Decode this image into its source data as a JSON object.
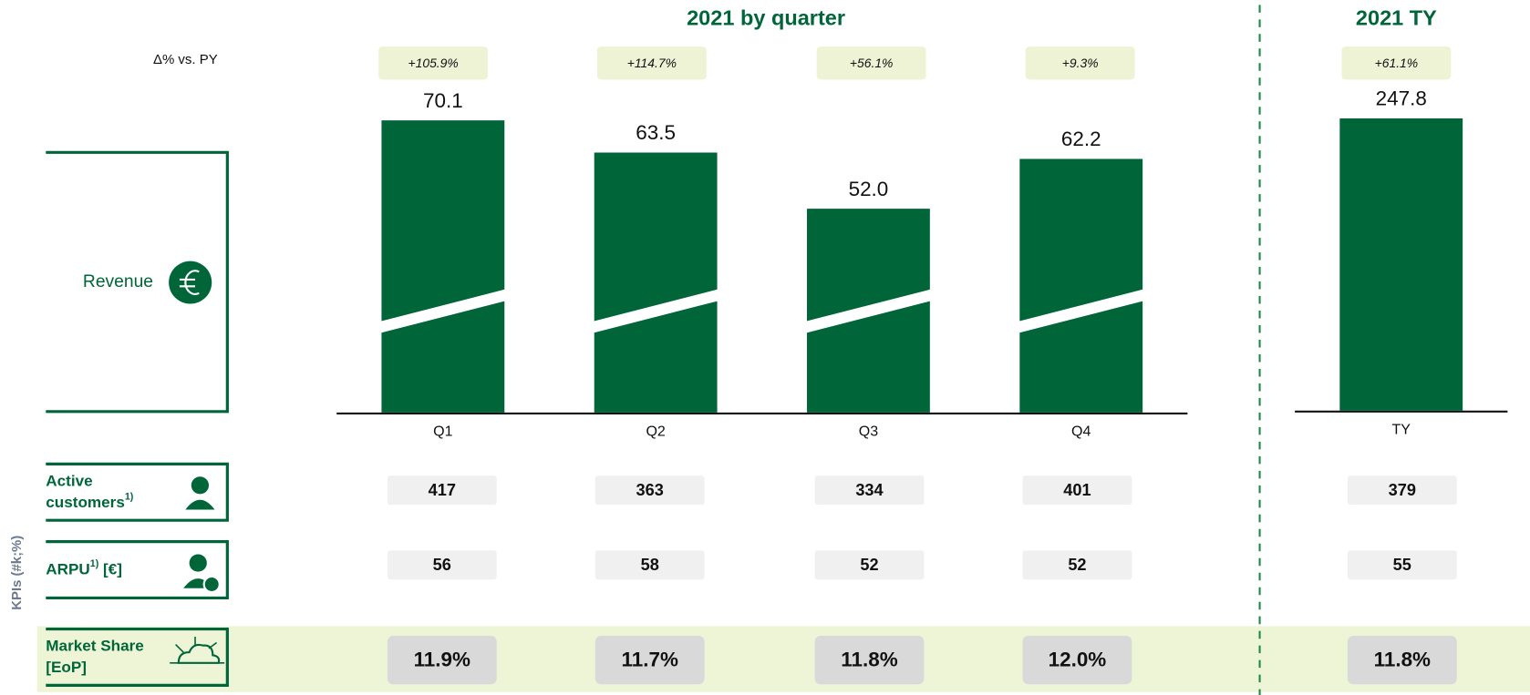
{
  "chart_data": [
    {
      "type": "bar",
      "title": "2021 by quarter",
      "row_label": "Revenue",
      "change_heading": "Δ% vs. PY",
      "categories": [
        "Q1",
        "Q2",
        "Q3",
        "Q4"
      ],
      "values": [
        70.1,
        63.5,
        52.0,
        62.2
      ],
      "value_labels": [
        "70.1",
        "63.5",
        "52.0",
        "62.2"
      ],
      "changes": [
        "+105.9%",
        "+114.7%",
        "+56.1%",
        "+9.3%"
      ],
      "color": "#00663a",
      "axis_break": true
    },
    {
      "type": "bar",
      "title": "2021 TY",
      "categories": [
        "TY"
      ],
      "values": [
        247.8
      ],
      "value_labels": [
        "247.8"
      ],
      "changes": [
        "+61.1%"
      ],
      "color": "#00663a",
      "axis_break": false
    }
  ],
  "kpis": {
    "axis_label": "KPIs (#k;%)",
    "rows": [
      {
        "label": [
          "Active",
          "customers"
        ],
        "note": "1)",
        "values": [
          "417",
          "363",
          "334",
          "401"
        ],
        "total": "379"
      },
      {
        "label": [
          "ARPU"
        ],
        "note": "1)",
        "unit": " [€]",
        "values": [
          "56",
          "58",
          "52",
          "52"
        ],
        "total": "55"
      },
      {
        "label": [
          "Market Share",
          "[EoP]"
        ],
        "values": [
          "11.9%",
          "11.7%",
          "11.8%",
          "12.0%"
        ],
        "total": "11.8%"
      }
    ]
  }
}
